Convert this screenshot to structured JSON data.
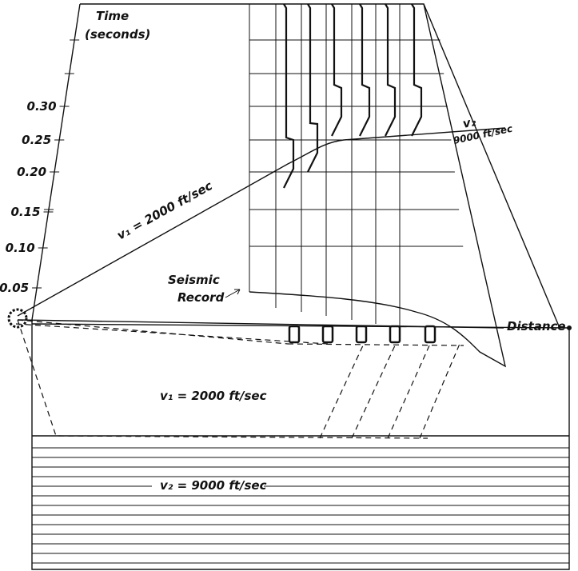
{
  "axis": {
    "title": "Time",
    "unit": "(seconds)",
    "ticks": [
      "0.30",
      "0.25",
      "0.20",
      "0.15",
      "0.10",
      "0.05"
    ]
  },
  "labels": {
    "direct_wave": "v₁ = 2000 ft/sec",
    "refracted_v": "v₂",
    "refracted_speed": "9000 ft/sec",
    "record": [
      "Seismic",
      "Record"
    ],
    "distance": "Distance",
    "layer1": "v₁ = 2000 ft/sec",
    "layer2": "v₂ = 9000 ft/sec"
  }
}
